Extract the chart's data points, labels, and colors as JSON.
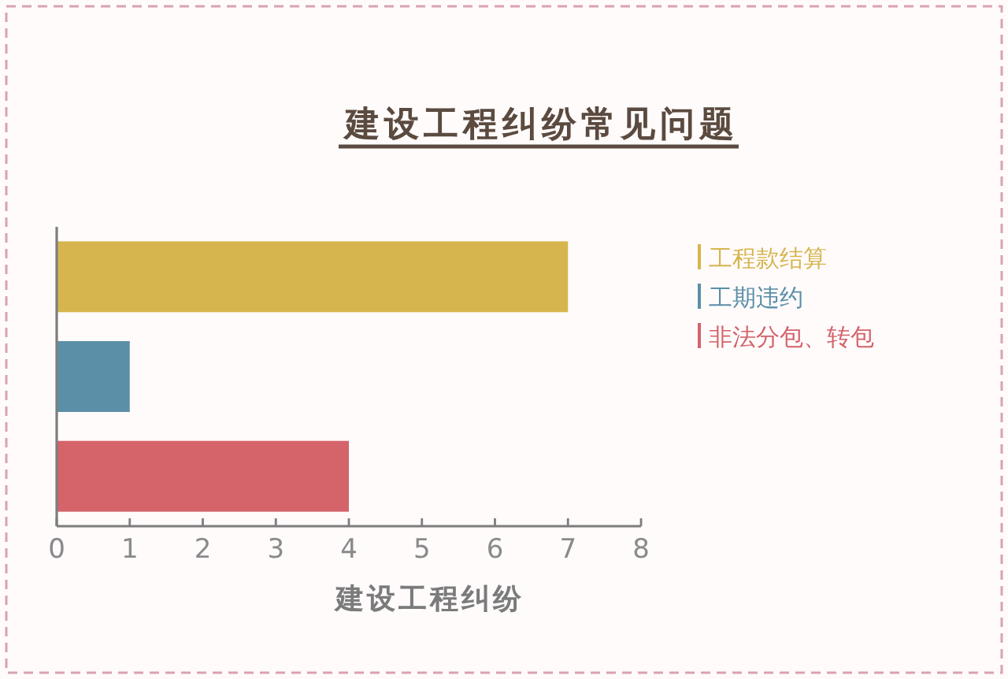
{
  "chart_data": {
    "type": "bar",
    "orientation": "horizontal",
    "title": "建设工程纠纷常见问题",
    "xlabel": "建设工程纠纷",
    "categories": [
      null,
      null,
      null
    ],
    "series": [
      {
        "name": "工程款结算",
        "color": "#d6b54e",
        "values": [
          7,
          null,
          null
        ]
      },
      {
        "name": "工期违约",
        "color": "#5b8fa8",
        "values": [
          null,
          1,
          null
        ]
      },
      {
        "name": "非法分包、转包",
        "color": "#d4636a",
        "values": [
          null,
          null,
          4
        ]
      }
    ],
    "xlim": [
      0,
      8
    ],
    "xticks": [
      0,
      1,
      2,
      3,
      4,
      5,
      6,
      7,
      8
    ],
    "legend": "right"
  }
}
